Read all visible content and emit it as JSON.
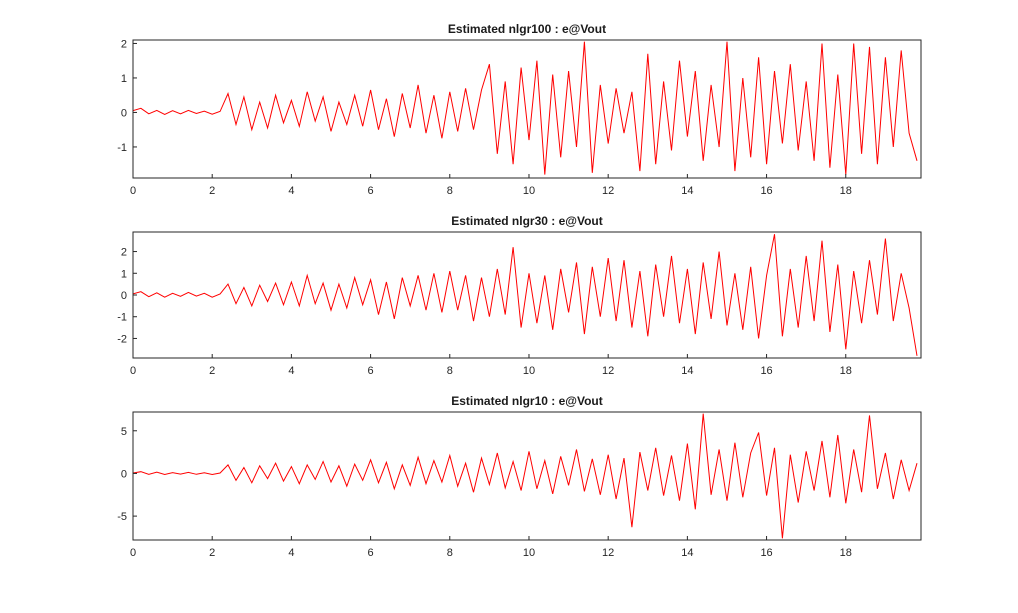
{
  "figure": {
    "background": "#ffffff",
    "axis_color": "#262626",
    "line_color": "#ff0000"
  },
  "chart_data": [
    {
      "type": "line",
      "title": "Estimated nlgr100 : e@Vout",
      "xlabel": "",
      "ylabel": "",
      "grid": false,
      "legend": "none",
      "xlim": [
        0,
        19.9
      ],
      "ylim": [
        -1.9,
        2.1
      ],
      "xticks": [
        0,
        2,
        4,
        6,
        8,
        10,
        12,
        14,
        16,
        18
      ],
      "yticks": [
        -1,
        0,
        1,
        2
      ],
      "x": {
        "start": 0,
        "step": 0.2,
        "n": 100
      },
      "values": [
        0.05,
        0.12,
        -0.04,
        0.06,
        -0.06,
        0.05,
        -0.04,
        0.06,
        -0.03,
        0.04,
        -0.05,
        0.03,
        0.55,
        -0.35,
        0.45,
        -0.5,
        0.3,
        -0.45,
        0.5,
        -0.3,
        0.35,
        -0.4,
        0.6,
        -0.25,
        0.45,
        -0.55,
        0.3,
        -0.35,
        0.5,
        -0.4,
        0.65,
        -0.5,
        0.4,
        -0.7,
        0.55,
        -0.45,
        0.8,
        -0.6,
        0.5,
        -0.75,
        0.6,
        -0.55,
        0.7,
        -0.5,
        0.65,
        1.4,
        -1.2,
        0.9,
        -1.5,
        1.3,
        -0.8,
        1.5,
        -1.8,
        1.1,
        -1.3,
        1.2,
        -1.0,
        2.05,
        -1.75,
        0.8,
        -0.9,
        0.7,
        -0.6,
        0.6,
        -1.7,
        1.7,
        -1.5,
        0.9,
        -1.1,
        1.5,
        -0.7,
        1.2,
        -1.4,
        0.8,
        -1.0,
        2.05,
        -1.7,
        1.0,
        -1.3,
        1.6,
        -1.5,
        1.2,
        -0.9,
        1.4,
        -1.1,
        0.9,
        -1.4,
        2.0,
        -1.6,
        1.1,
        -1.8,
        2.0,
        -1.2,
        1.9,
        -1.5,
        1.6,
        -1.0,
        1.8,
        -0.6,
        -1.4
      ]
    },
    {
      "type": "line",
      "title": "Estimated nlgr30 : e@Vout",
      "xlabel": "",
      "ylabel": "",
      "grid": false,
      "legend": "none",
      "xlim": [
        0,
        19.9
      ],
      "ylim": [
        -2.9,
        2.9
      ],
      "xticks": [
        0,
        2,
        4,
        6,
        8,
        10,
        12,
        14,
        16,
        18
      ],
      "yticks": [
        -2,
        -1,
        0,
        1,
        2
      ],
      "x": {
        "start": 0,
        "step": 0.2,
        "n": 100
      },
      "values": [
        0.05,
        0.15,
        -0.08,
        0.1,
        -0.1,
        0.08,
        -0.06,
        0.12,
        -0.05,
        0.08,
        -0.1,
        0.05,
        0.5,
        -0.4,
        0.35,
        -0.5,
        0.45,
        -0.3,
        0.55,
        -0.45,
        0.6,
        -0.5,
        0.9,
        -0.4,
        0.55,
        -0.7,
        0.5,
        -0.6,
        0.8,
        -0.45,
        0.7,
        -0.9,
        0.6,
        -1.1,
        0.8,
        -0.5,
        0.9,
        -0.7,
        1.0,
        -0.8,
        1.1,
        -0.7,
        0.9,
        -1.2,
        0.8,
        -1.0,
        1.2,
        -0.9,
        2.2,
        -1.5,
        1.0,
        -1.3,
        0.9,
        -1.6,
        1.2,
        -0.8,
        1.5,
        -1.8,
        1.3,
        -1.0,
        1.7,
        -1.2,
        1.6,
        -1.5,
        1.1,
        -1.9,
        1.4,
        -1.0,
        1.8,
        -1.3,
        1.2,
        -1.8,
        1.5,
        -1.1,
        2.0,
        -1.4,
        1.0,
        -1.6,
        1.3,
        -2.0,
        0.9,
        2.8,
        -1.9,
        1.2,
        -1.5,
        1.8,
        -1.2,
        2.5,
        -1.7,
        1.4,
        -2.5,
        1.1,
        -1.3,
        1.6,
        -0.9,
        2.6,
        -1.2,
        1.0,
        -0.6,
        -2.8
      ]
    },
    {
      "type": "line",
      "title": "Estimated nlgr10 : e@Vout",
      "xlabel": "",
      "ylabel": "",
      "grid": false,
      "legend": "none",
      "xlim": [
        0,
        19.9
      ],
      "ylim": [
        -7.8,
        7.2
      ],
      "xticks": [
        0,
        2,
        4,
        6,
        8,
        10,
        12,
        14,
        16,
        18
      ],
      "yticks": [
        -5,
        0,
        5
      ],
      "x": {
        "start": 0,
        "step": 0.2,
        "n": 100
      },
      "values": [
        0.05,
        0.2,
        -0.1,
        0.15,
        -0.12,
        0.1,
        -0.08,
        0.12,
        -0.1,
        0.08,
        -0.12,
        0.05,
        1.0,
        -0.8,
        0.7,
        -1.1,
        0.9,
        -0.6,
        1.2,
        -0.9,
        0.8,
        -1.2,
        1.0,
        -0.7,
        1.4,
        -1.0,
        0.9,
        -1.5,
        1.1,
        -0.8,
        1.6,
        -1.1,
        1.3,
        -1.8,
        1.0,
        -1.4,
        1.9,
        -1.2,
        1.5,
        -1.0,
        2.1,
        -1.5,
        1.2,
        -2.2,
        1.8,
        -1.3,
        2.4,
        -1.7,
        1.4,
        -2.0,
        2.6,
        -1.8,
        1.5,
        -2.4,
        2.0,
        -1.4,
        2.8,
        -2.1,
        1.7,
        -2.5,
        2.2,
        -3.0,
        1.8,
        -6.3,
        2.5,
        -2.0,
        3.0,
        -2.6,
        2.1,
        -3.2,
        3.5,
        -4.2,
        7.0,
        -2.5,
        2.8,
        -3.2,
        3.6,
        -2.8,
        2.4,
        4.8,
        -2.6,
        3.0,
        -7.6,
        2.2,
        -3.4,
        2.6,
        -2.0,
        3.8,
        -2.8,
        4.5,
        -3.5,
        2.8,
        -2.2,
        6.8,
        -1.8,
        2.4,
        -3.0,
        1.6,
        -2.0,
        1.2
      ]
    }
  ]
}
